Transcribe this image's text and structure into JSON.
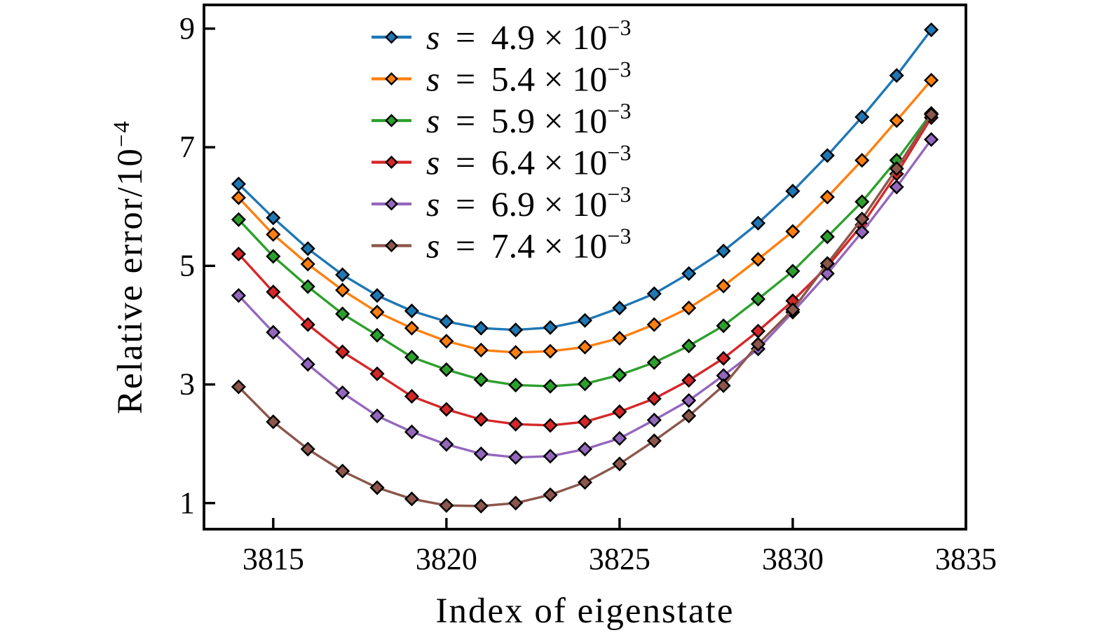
{
  "chart_data": {
    "type": "line",
    "title": "",
    "xlabel": "Index of eigenstate",
    "ylabel_base": "Relative error/10",
    "ylabel_exp": "−4",
    "x_ticks": [
      3815,
      3820,
      3825,
      3830,
      3835
    ],
    "y_ticks": [
      1,
      3,
      5,
      7,
      9
    ],
    "xlim": [
      3813,
      3835
    ],
    "ylim": [
      0.56,
      9.4
    ],
    "x_start": 3814,
    "x_step": 1,
    "grid": false,
    "legend_position": "upper left inside",
    "marker": "diamond",
    "series": [
      {
        "name": "s = 4.9×10^−3",
        "value": "4.9",
        "exp": "−3",
        "color": "#1f77b4",
        "values": [
          6.38,
          5.81,
          5.29,
          4.85,
          4.5,
          4.24,
          4.06,
          3.95,
          3.92,
          3.96,
          4.08,
          4.29,
          4.53,
          4.87,
          5.25,
          5.72,
          6.26,
          6.86,
          7.51,
          8.21,
          8.98
        ]
      },
      {
        "name": "s = 5.4×10^−3",
        "value": "5.4",
        "exp": "−3",
        "color": "#ff7f0e",
        "values": [
          6.15,
          5.53,
          5.03,
          4.59,
          4.22,
          3.95,
          3.73,
          3.58,
          3.54,
          3.56,
          3.63,
          3.78,
          4.01,
          4.29,
          4.66,
          5.11,
          5.58,
          6.16,
          6.78,
          7.45,
          8.13
        ]
      },
      {
        "name": "s = 5.9×10^−3",
        "value": "5.9",
        "exp": "−3",
        "color": "#2ca02c",
        "values": [
          5.78,
          5.16,
          4.65,
          4.19,
          3.83,
          3.46,
          3.25,
          3.08,
          2.99,
          2.97,
          3.01,
          3.16,
          3.37,
          3.65,
          3.99,
          4.44,
          4.91,
          5.49,
          6.08,
          6.78,
          7.57
        ]
      },
      {
        "name": "s = 6.4×10^−3",
        "value": "6.4",
        "exp": "−3",
        "color": "#d62728",
        "values": [
          5.2,
          4.56,
          4.01,
          3.55,
          3.18,
          2.8,
          2.58,
          2.41,
          2.33,
          2.31,
          2.37,
          2.54,
          2.76,
          3.07,
          3.44,
          3.9,
          4.41,
          4.99,
          5.69,
          6.55,
          7.5
        ]
      },
      {
        "name": "s = 6.9×10^−3",
        "value": "6.9",
        "exp": "−3",
        "color": "#9467bd",
        "values": [
          4.5,
          3.88,
          3.34,
          2.86,
          2.47,
          2.2,
          1.99,
          1.83,
          1.77,
          1.79,
          1.91,
          2.09,
          2.4,
          2.73,
          3.15,
          3.6,
          4.22,
          4.87,
          5.57,
          6.33,
          7.13
        ]
      },
      {
        "name": "s = 7.4×10^−3",
        "value": "7.4",
        "exp": "−3",
        "color": "#8c564b",
        "values": [
          2.96,
          2.37,
          1.91,
          1.54,
          1.26,
          1.07,
          0.96,
          0.95,
          1.0,
          1.14,
          1.35,
          1.66,
          2.05,
          2.47,
          2.98,
          3.68,
          4.26,
          5.04,
          5.79,
          6.64,
          7.55
        ]
      }
    ],
    "axis_color": "#000000"
  }
}
